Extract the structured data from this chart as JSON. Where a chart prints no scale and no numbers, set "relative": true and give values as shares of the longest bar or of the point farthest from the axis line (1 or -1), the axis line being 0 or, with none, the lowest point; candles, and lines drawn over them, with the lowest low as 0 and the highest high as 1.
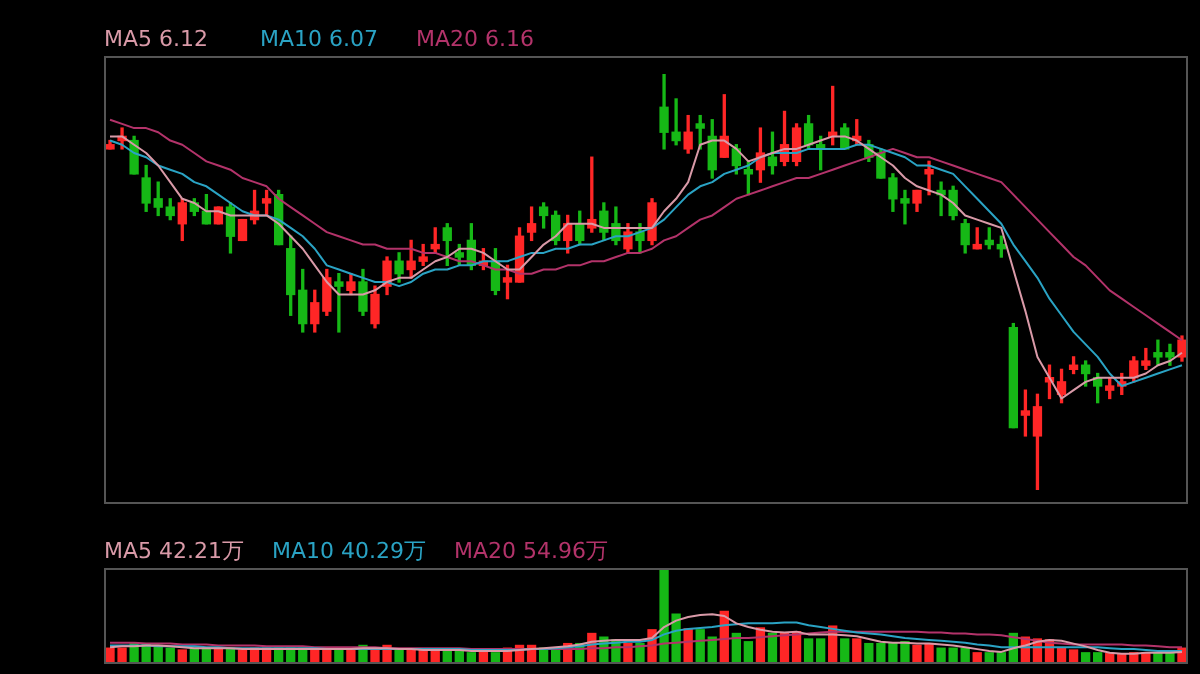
{
  "chart_data": [
    {
      "type": "candlestick",
      "relative": true,
      "legend": "top left",
      "categories": [
        null,
        null,
        null,
        null,
        null,
        null,
        null,
        null,
        null,
        null,
        null,
        null,
        null,
        null,
        null,
        null,
        null,
        null,
        null,
        null,
        null,
        null,
        null,
        null,
        null,
        null,
        null,
        null,
        null,
        null,
        null,
        null,
        null,
        null,
        null,
        null,
        null,
        null,
        null,
        null,
        null,
        null,
        null,
        null,
        null,
        null,
        null,
        null,
        null,
        null,
        null,
        null,
        null,
        null,
        null,
        null,
        null,
        null,
        null,
        null,
        null,
        null,
        null,
        null,
        null,
        null,
        null,
        null,
        null,
        null,
        null,
        null,
        null,
        null,
        null,
        null,
        null,
        null,
        null,
        null,
        null,
        null,
        null,
        null,
        null,
        null,
        null,
        null,
        null,
        null
      ],
      "ohlc": [
        [
          0.82,
          0.84,
          0.82,
          0.83
        ],
        [
          0.84,
          0.87,
          0.82,
          0.85
        ],
        [
          0.84,
          0.85,
          0.76,
          0.76
        ],
        [
          0.75,
          0.78,
          0.67,
          0.69
        ],
        [
          0.7,
          0.74,
          0.66,
          0.68
        ],
        [
          0.68,
          0.7,
          0.65,
          0.66
        ],
        [
          0.64,
          0.7,
          0.6,
          0.69
        ],
        [
          0.69,
          0.7,
          0.66,
          0.67
        ],
        [
          0.67,
          0.71,
          0.64,
          0.64
        ],
        [
          0.64,
          0.68,
          0.64,
          0.68
        ],
        [
          0.68,
          0.69,
          0.57,
          0.61
        ],
        [
          0.6,
          0.65,
          0.6,
          0.65
        ],
        [
          0.65,
          0.72,
          0.64,
          0.67
        ],
        [
          0.69,
          0.72,
          0.66,
          0.7
        ],
        [
          0.71,
          0.72,
          0.59,
          0.59
        ],
        [
          0.58,
          0.61,
          0.42,
          0.47
        ],
        [
          0.48,
          0.53,
          0.38,
          0.4
        ],
        [
          0.4,
          0.48,
          0.38,
          0.45
        ],
        [
          0.43,
          0.53,
          0.42,
          0.51
        ],
        [
          0.5,
          0.52,
          0.38,
          0.49
        ],
        [
          0.48,
          0.52,
          0.47,
          0.5
        ],
        [
          0.5,
          0.53,
          0.42,
          0.43
        ],
        [
          0.4,
          0.49,
          0.39,
          0.47
        ],
        [
          0.49,
          0.56,
          0.47,
          0.55
        ],
        [
          0.55,
          0.57,
          0.5,
          0.52
        ],
        [
          0.53,
          0.6,
          0.51,
          0.55
        ],
        [
          0.55,
          0.59,
          0.54,
          0.56
        ],
        [
          0.58,
          0.63,
          0.57,
          0.59
        ],
        [
          0.63,
          0.64,
          0.54,
          0.6
        ],
        [
          0.57,
          0.59,
          0.54,
          0.56
        ],
        [
          0.6,
          0.64,
          0.53,
          0.54
        ],
        [
          0.54,
          0.58,
          0.53,
          0.55
        ],
        [
          0.55,
          0.58,
          0.47,
          0.48
        ],
        [
          0.5,
          0.54,
          0.46,
          0.51
        ],
        [
          0.5,
          0.63,
          0.5,
          0.61
        ],
        [
          0.62,
          0.68,
          0.6,
          0.64
        ],
        [
          0.68,
          0.69,
          0.63,
          0.66
        ],
        [
          0.66,
          0.67,
          0.59,
          0.6
        ],
        [
          0.6,
          0.66,
          0.57,
          0.64
        ],
        [
          0.64,
          0.67,
          0.59,
          0.6
        ],
        [
          0.63,
          0.8,
          0.62,
          0.65
        ],
        [
          0.67,
          0.69,
          0.6,
          0.62
        ],
        [
          0.64,
          0.68,
          0.59,
          0.6
        ],
        [
          0.58,
          0.64,
          0.57,
          0.62
        ],
        [
          0.62,
          0.64,
          0.57,
          0.6
        ],
        [
          0.6,
          0.7,
          0.59,
          0.69
        ],
        [
          0.92,
          1.0,
          0.82,
          0.86
        ],
        [
          0.86,
          0.94,
          0.83,
          0.84
        ],
        [
          0.82,
          0.9,
          0.81,
          0.86
        ],
        [
          0.88,
          0.9,
          0.82,
          0.87
        ],
        [
          0.85,
          0.89,
          0.75,
          0.77
        ],
        [
          0.8,
          0.95,
          0.8,
          0.85
        ],
        [
          0.82,
          0.83,
          0.76,
          0.78
        ],
        [
          0.77,
          0.79,
          0.71,
          0.76
        ],
        [
          0.77,
          0.87,
          0.74,
          0.81
        ],
        [
          0.8,
          0.86,
          0.76,
          0.78
        ],
        [
          0.79,
          0.91,
          0.78,
          0.83
        ],
        [
          0.79,
          0.88,
          0.78,
          0.87
        ],
        [
          0.88,
          0.9,
          0.82,
          0.83
        ],
        [
          0.83,
          0.85,
          0.77,
          0.82
        ],
        [
          0.85,
          0.97,
          0.83,
          0.86
        ],
        [
          0.87,
          0.88,
          0.82,
          0.82
        ],
        [
          0.84,
          0.89,
          0.83,
          0.85
        ],
        [
          0.83,
          0.84,
          0.79,
          0.8
        ],
        [
          0.81,
          0.82,
          0.75,
          0.75
        ],
        [
          0.75,
          0.76,
          0.67,
          0.7
        ],
        [
          0.7,
          0.72,
          0.64,
          0.69
        ],
        [
          0.69,
          0.72,
          0.67,
          0.72
        ],
        [
          0.76,
          0.79,
          0.71,
          0.77
        ],
        [
          0.72,
          0.74,
          0.66,
          0.71
        ],
        [
          0.72,
          0.73,
          0.65,
          0.66
        ],
        [
          0.64,
          0.65,
          0.57,
          0.59
        ],
        [
          0.58,
          0.63,
          0.58,
          0.59
        ],
        [
          0.6,
          0.63,
          0.58,
          0.59
        ],
        [
          0.59,
          0.61,
          0.56,
          0.58
        ],
        [
          0.39,
          0.4,
          0.15,
          0.15
        ],
        [
          0.18,
          0.24,
          0.13,
          0.19
        ],
        [
          0.13,
          0.23,
          0.0,
          0.2
        ],
        [
          0.26,
          0.3,
          0.22,
          0.27
        ],
        [
          0.23,
          0.29,
          0.21,
          0.26
        ],
        [
          0.29,
          0.32,
          0.28,
          0.3
        ],
        [
          0.3,
          0.31,
          0.25,
          0.28
        ],
        [
          0.27,
          0.28,
          0.21,
          0.25
        ],
        [
          0.24,
          0.27,
          0.22,
          0.25
        ],
        [
          0.25,
          0.28,
          0.23,
          0.26
        ],
        [
          0.27,
          0.32,
          0.26,
          0.31
        ],
        [
          0.3,
          0.34,
          0.29,
          0.31
        ],
        [
          0.33,
          0.36,
          0.3,
          0.32
        ],
        [
          0.33,
          0.35,
          0.3,
          0.32
        ],
        [
          0.32,
          0.37,
          0.31,
          0.36
        ]
      ],
      "colors": [
        "#ff2626",
        "#ff2626",
        "#16b816",
        "#16b816",
        "#16b816",
        "#16b816",
        "#ff2626",
        "#16b816",
        "#16b816",
        "#ff2626",
        "#16b816",
        "#ff2626",
        "#ff2626",
        "#ff2626",
        "#16b816",
        "#16b816",
        "#16b816",
        "#ff2626",
        "#ff2626",
        "#16b816",
        "#ff2626",
        "#16b816",
        "#ff2626",
        "#ff2626",
        "#16b816",
        "#ff2626",
        "#ff2626",
        "#ff2626",
        "#16b816",
        "#16b816",
        "#16b816",
        "#ff2626",
        "#16b816",
        "#ff2626",
        "#ff2626",
        "#ff2626",
        "#16b816",
        "#16b816",
        "#ff2626",
        "#16b816",
        "#ff2626",
        "#16b816",
        "#16b816",
        "#ff2626",
        "#16b816",
        "#ff2626",
        "#16b816",
        "#16b816",
        "#ff2626",
        "#16b816",
        "#16b816",
        "#ff2626",
        "#16b816",
        "#16b816",
        "#ff2626",
        "#16b816",
        "#ff2626",
        "#ff2626",
        "#16b816",
        "#16b816",
        "#ff2626",
        "#16b816",
        "#ff2626",
        "#16b816",
        "#16b816",
        "#16b816",
        "#16b816",
        "#ff2626",
        "#ff2626",
        "#16b816",
        "#16b816",
        "#16b816",
        "#ff2626",
        "#16b816",
        "#16b816",
        "#16b816",
        "#ff2626",
        "#ff2626",
        "#ff2626",
        "#ff2626",
        "#ff2626",
        "#16b816",
        "#16b816",
        "#ff2626",
        "#ff2626",
        "#ff2626",
        "#ff2626",
        "#16b816",
        "#16b816",
        "#ff2626"
      ],
      "series": [
        {
          "name": "MA5 6.12",
          "type": "line",
          "color": "#d99aa8",
          "values": [
            0.85,
            0.85,
            0.83,
            0.81,
            0.78,
            0.74,
            0.7,
            0.69,
            0.67,
            0.67,
            0.66,
            0.66,
            0.66,
            0.66,
            0.64,
            0.61,
            0.58,
            0.54,
            0.5,
            0.47,
            0.47,
            0.47,
            0.48,
            0.5,
            0.51,
            0.51,
            0.53,
            0.55,
            0.56,
            0.58,
            0.58,
            0.57,
            0.55,
            0.53,
            0.53,
            0.56,
            0.59,
            0.61,
            0.64,
            0.64,
            0.64,
            0.63,
            0.63,
            0.63,
            0.63,
            0.63,
            0.67,
            0.7,
            0.74,
            0.83,
            0.84,
            0.84,
            0.82,
            0.79,
            0.8,
            0.81,
            0.82,
            0.82,
            0.83,
            0.84,
            0.85,
            0.85,
            0.84,
            0.82,
            0.8,
            0.78,
            0.75,
            0.73,
            0.72,
            0.71,
            0.69,
            0.66,
            0.65,
            0.64,
            0.63,
            0.53,
            0.43,
            0.32,
            0.27,
            0.22,
            0.24,
            0.26,
            0.27,
            0.27,
            0.27,
            0.27,
            0.28,
            0.3,
            0.31,
            0.33
          ]
        },
        {
          "name": "MA10 6.07",
          "type": "line",
          "color": "#2aa3c4",
          "values": [
            0.84,
            0.83,
            0.81,
            0.8,
            0.78,
            0.77,
            0.76,
            0.74,
            0.73,
            0.71,
            0.69,
            0.67,
            0.66,
            0.66,
            0.65,
            0.63,
            0.61,
            0.58,
            0.54,
            0.53,
            0.52,
            0.51,
            0.5,
            0.5,
            0.49,
            0.5,
            0.52,
            0.53,
            0.53,
            0.54,
            0.54,
            0.55,
            0.55,
            0.55,
            0.56,
            0.57,
            0.57,
            0.58,
            0.58,
            0.59,
            0.59,
            0.6,
            0.61,
            0.61,
            0.62,
            0.63,
            0.65,
            0.68,
            0.71,
            0.73,
            0.74,
            0.76,
            0.77,
            0.78,
            0.8,
            0.81,
            0.81,
            0.81,
            0.82,
            0.82,
            0.82,
            0.82,
            0.83,
            0.83,
            0.82,
            0.81,
            0.8,
            0.78,
            0.78,
            0.77,
            0.76,
            0.73,
            0.7,
            0.67,
            0.64,
            0.59,
            0.55,
            0.51,
            0.46,
            0.42,
            0.38,
            0.35,
            0.32,
            0.28,
            0.25,
            0.26,
            0.27,
            0.28,
            0.29,
            0.3
          ]
        },
        {
          "name": "MA20 6.16",
          "type": "line",
          "color": "#b3336a",
          "values": [
            0.89,
            0.88,
            0.87,
            0.87,
            0.86,
            0.84,
            0.83,
            0.81,
            0.79,
            0.78,
            0.77,
            0.75,
            0.74,
            0.73,
            0.7,
            0.68,
            0.66,
            0.64,
            0.62,
            0.61,
            0.6,
            0.59,
            0.59,
            0.58,
            0.58,
            0.58,
            0.57,
            0.57,
            0.56,
            0.55,
            0.55,
            0.54,
            0.53,
            0.53,
            0.52,
            0.52,
            0.53,
            0.53,
            0.54,
            0.54,
            0.55,
            0.55,
            0.56,
            0.57,
            0.57,
            0.58,
            0.6,
            0.61,
            0.63,
            0.65,
            0.66,
            0.68,
            0.7,
            0.71,
            0.72,
            0.73,
            0.74,
            0.75,
            0.75,
            0.76,
            0.77,
            0.78,
            0.79,
            0.8,
            0.81,
            0.82,
            0.81,
            0.8,
            0.8,
            0.79,
            0.78,
            0.77,
            0.76,
            0.75,
            0.74,
            0.71,
            0.68,
            0.65,
            0.62,
            0.59,
            0.56,
            0.54,
            0.51,
            0.48,
            0.46,
            0.44,
            0.42,
            0.4,
            0.38,
            0.36
          ]
        }
      ]
    },
    {
      "type": "bar",
      "relative": true,
      "legend": "top left",
      "categories": [
        null,
        null,
        null,
        null,
        null,
        null,
        null,
        null,
        null,
        null,
        null,
        null,
        null,
        null,
        null,
        null,
        null,
        null,
        null,
        null,
        null,
        null,
        null,
        null,
        null,
        null,
        null,
        null,
        null,
        null,
        null,
        null,
        null,
        null,
        null,
        null,
        null,
        null,
        null,
        null,
        null,
        null,
        null,
        null,
        null,
        null,
        null,
        null,
        null,
        null,
        null,
        null,
        null,
        null,
        null,
        null,
        null,
        null,
        null,
        null,
        null,
        null,
        null,
        null,
        null,
        null,
        null,
        null,
        null,
        null,
        null,
        null,
        null,
        null,
        null,
        null,
        null,
        null,
        null,
        null,
        null,
        null,
        null,
        null,
        null,
        null,
        null,
        null,
        null,
        null
      ],
      "series": [
        {
          "type": "bar",
          "colors": [
            "#ff2626",
            "#ff2626",
            "#16b816",
            "#16b816",
            "#16b816",
            "#16b816",
            "#ff2626",
            "#16b816",
            "#16b816",
            "#ff2626",
            "#16b816",
            "#ff2626",
            "#ff2626",
            "#ff2626",
            "#16b816",
            "#16b816",
            "#16b816",
            "#ff2626",
            "#ff2626",
            "#16b816",
            "#ff2626",
            "#16b816",
            "#ff2626",
            "#ff2626",
            "#16b816",
            "#ff2626",
            "#ff2626",
            "#ff2626",
            "#16b816",
            "#16b816",
            "#16b816",
            "#ff2626",
            "#16b816",
            "#ff2626",
            "#ff2626",
            "#ff2626",
            "#16b816",
            "#16b816",
            "#ff2626",
            "#16b816",
            "#ff2626",
            "#16b816",
            "#16b816",
            "#ff2626",
            "#16b816",
            "#ff2626",
            "#16b816",
            "#16b816",
            "#ff2626",
            "#16b816",
            "#16b816",
            "#ff2626",
            "#16b816",
            "#16b816",
            "#ff2626",
            "#16b816",
            "#ff2626",
            "#ff2626",
            "#16b816",
            "#16b816",
            "#ff2626",
            "#16b816",
            "#ff2626",
            "#16b816",
            "#16b816",
            "#16b816",
            "#16b816",
            "#ff2626",
            "#ff2626",
            "#16b816",
            "#16b816",
            "#16b816",
            "#ff2626",
            "#16b816",
            "#16b816",
            "#16b816",
            "#ff2626",
            "#ff2626",
            "#ff2626",
            "#ff2626",
            "#ff2626",
            "#16b816",
            "#16b816",
            "#ff2626",
            "#ff2626",
            "#ff2626",
            "#ff2626",
            "#16b816",
            "#16b816",
            "#ff2626"
          ],
          "values": [
            0.15,
            0.15,
            0.2,
            0.2,
            0.18,
            0.15,
            0.13,
            0.15,
            0.15,
            0.15,
            0.15,
            0.13,
            0.15,
            0.15,
            0.15,
            0.15,
            0.15,
            0.13,
            0.15,
            0.15,
            0.13,
            0.18,
            0.13,
            0.18,
            0.13,
            0.13,
            0.13,
            0.13,
            0.13,
            0.13,
            0.1,
            0.13,
            0.1,
            0.15,
            0.18,
            0.18,
            0.15,
            0.15,
            0.2,
            0.2,
            0.31,
            0.27,
            0.24,
            0.2,
            0.2,
            0.35,
            1,
            0.52,
            0.36,
            0.35,
            0.27,
            0.55,
            0.31,
            0.22,
            0.37,
            0.31,
            0.31,
            0.33,
            0.25,
            0.25,
            0.39,
            0.25,
            0.25,
            0.2,
            0.2,
            0.2,
            0.22,
            0.18,
            0.2,
            0.15,
            0.15,
            0.15,
            0.1,
            0.1,
            0.1,
            0.31,
            0.27,
            0.25,
            0.24,
            0.15,
            0.13,
            0.1,
            0.1,
            0.09,
            0.09,
            0.1,
            0.1,
            0.1,
            0.1,
            0.15
          ]
        },
        {
          "name": "MA5 42.21万",
          "type": "line",
          "color": "#d99aa8",
          "values": [
            0.16,
            0.17,
            0.17,
            0.18,
            0.18,
            0.17,
            0.16,
            0.15,
            0.15,
            0.15,
            0.15,
            0.14,
            0.14,
            0.14,
            0.14,
            0.14,
            0.14,
            0.14,
            0.14,
            0.14,
            0.14,
            0.15,
            0.15,
            0.15,
            0.14,
            0.14,
            0.13,
            0.13,
            0.13,
            0.13,
            0.12,
            0.12,
            0.12,
            0.12,
            0.13,
            0.14,
            0.15,
            0.16,
            0.17,
            0.19,
            0.22,
            0.23,
            0.24,
            0.24,
            0.24,
            0.26,
            0.38,
            0.45,
            0.49,
            0.51,
            0.52,
            0.5,
            0.42,
            0.38,
            0.35,
            0.33,
            0.32,
            0.33,
            0.3,
            0.3,
            0.3,
            0.29,
            0.28,
            0.25,
            0.22,
            0.21,
            0.21,
            0.2,
            0.2,
            0.19,
            0.18,
            0.16,
            0.14,
            0.12,
            0.11,
            0.15,
            0.18,
            0.22,
            0.24,
            0.23,
            0.2,
            0.17,
            0.13,
            0.1,
            0.09,
            0.09,
            0.1,
            0.1,
            0.1,
            0.11
          ]
        },
        {
          "name": "MA10 40.29万",
          "type": "line",
          "color": "#2aa3c4",
          "values": [
            0.18,
            0.18,
            0.18,
            0.18,
            0.17,
            0.17,
            0.17,
            0.17,
            0.16,
            0.16,
            0.15,
            0.15,
            0.15,
            0.15,
            0.15,
            0.15,
            0.15,
            0.15,
            0.14,
            0.14,
            0.14,
            0.14,
            0.14,
            0.14,
            0.14,
            0.14,
            0.14,
            0.14,
            0.14,
            0.14,
            0.13,
            0.13,
            0.13,
            0.13,
            0.13,
            0.14,
            0.14,
            0.15,
            0.16,
            0.17,
            0.19,
            0.2,
            0.21,
            0.22,
            0.22,
            0.24,
            0.3,
            0.34,
            0.36,
            0.37,
            0.38,
            0.4,
            0.41,
            0.42,
            0.42,
            0.42,
            0.43,
            0.43,
            0.4,
            0.38,
            0.36,
            0.34,
            0.32,
            0.31,
            0.3,
            0.28,
            0.26,
            0.25,
            0.24,
            0.23,
            0.22,
            0.21,
            0.19,
            0.18,
            0.16,
            0.16,
            0.16,
            0.16,
            0.16,
            0.16,
            0.16,
            0.16,
            0.16,
            0.15,
            0.14,
            0.14,
            0.13,
            0.12,
            0.12,
            0.12
          ]
        },
        {
          "name": "MA20 54.96万",
          "type": "line",
          "color": "#b3336a",
          "values": [
            0.21,
            0.21,
            0.21,
            0.2,
            0.2,
            0.2,
            0.19,
            0.19,
            0.19,
            0.18,
            0.18,
            0.18,
            0.18,
            0.17,
            0.17,
            0.17,
            0.17,
            0.16,
            0.16,
            0.16,
            0.16,
            0.16,
            0.16,
            0.15,
            0.15,
            0.15,
            0.15,
            0.15,
            0.15,
            0.15,
            0.14,
            0.14,
            0.14,
            0.14,
            0.14,
            0.14,
            0.14,
            0.14,
            0.14,
            0.14,
            0.15,
            0.15,
            0.16,
            0.16,
            0.17,
            0.18,
            0.2,
            0.21,
            0.22,
            0.23,
            0.24,
            0.25,
            0.26,
            0.26,
            0.27,
            0.28,
            0.29,
            0.3,
            0.31,
            0.32,
            0.33,
            0.33,
            0.33,
            0.33,
            0.33,
            0.33,
            0.33,
            0.33,
            0.32,
            0.32,
            0.31,
            0.31,
            0.3,
            0.3,
            0.29,
            0.27,
            0.25,
            0.23,
            0.21,
            0.2,
            0.19,
            0.19,
            0.19,
            0.19,
            0.19,
            0.18,
            0.18,
            0.17,
            0.16,
            0.16
          ]
        }
      ]
    }
  ]
}
